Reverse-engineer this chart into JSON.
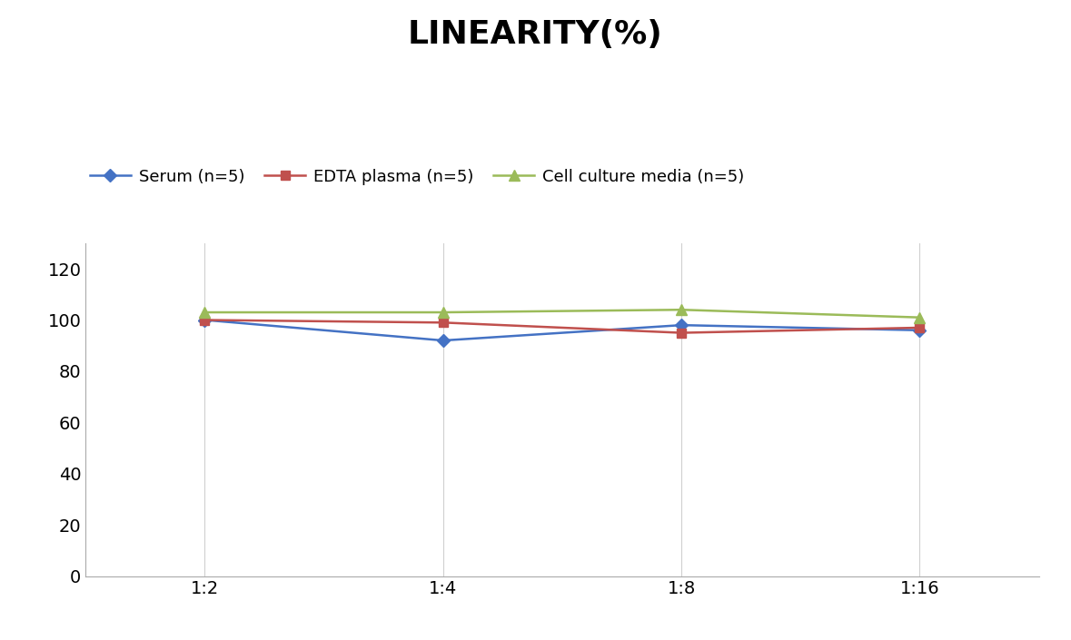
{
  "title": "LINEARITY(%)",
  "x_labels": [
    "1:2",
    "1:4",
    "1:8",
    "1:16"
  ],
  "x_positions": [
    0,
    1,
    2,
    3
  ],
  "series": [
    {
      "label": "Serum (n=5)",
      "values": [
        100,
        92,
        98,
        96
      ],
      "color": "#4472C4",
      "marker": "D",
      "marker_size": 7,
      "linewidth": 1.8
    },
    {
      "label": "EDTA plasma (n=5)",
      "values": [
        100,
        99,
        95,
        97
      ],
      "color": "#C0504D",
      "marker": "s",
      "marker_size": 7,
      "linewidth": 1.8
    },
    {
      "label": "Cell culture media (n=5)",
      "values": [
        103,
        103,
        104,
        101
      ],
      "color": "#9BBB59",
      "marker": "^",
      "marker_size": 8,
      "linewidth": 1.8
    }
  ],
  "ylim": [
    0,
    130
  ],
  "yticks": [
    0,
    20,
    40,
    60,
    80,
    100,
    120
  ],
  "background_color": "#ffffff",
  "grid_color": "#d0d0d0",
  "title_fontsize": 26,
  "legend_fontsize": 13,
  "tick_fontsize": 14
}
